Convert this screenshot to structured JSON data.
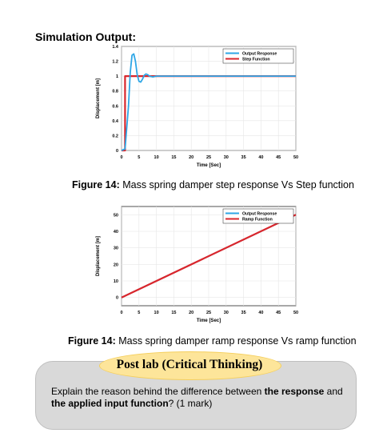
{
  "section_title": "Simulation Output:",
  "captions": [
    {
      "prefix": "Figure 14:",
      "text": " Mass spring damper step response Vs Step function"
    },
    {
      "prefix": "Figure 14:",
      "text": " Mass spring damper ramp response Vs ramp function"
    }
  ],
  "postlab": {
    "title": "Post lab (Critical Thinking)",
    "q_part1": "Explain the reason behind the difference between ",
    "q_bold1": "the response",
    "q_part2": " and ",
    "q_bold2": "the applied input function",
    "q_part3": "? (1 mark)"
  },
  "colors": {
    "output": "#2ea6e6",
    "input": "#d9262c",
    "pill": "#fde59a",
    "box": "#d9d9d9"
  },
  "chart_data": [
    {
      "type": "line",
      "xlabel": "Time [Sec]",
      "ylabel": "Displacement [m]",
      "xlim": [
        0,
        50
      ],
      "ylim": [
        0,
        1.4
      ],
      "xticks": [
        0,
        5,
        10,
        15,
        20,
        25,
        30,
        35,
        40,
        45,
        50
      ],
      "yticks": [
        0,
        0.2,
        0.4,
        0.6,
        0.8,
        1,
        1.2,
        1.4
      ],
      "ytick_labels": [
        "0",
        "0.2",
        "0.4",
        "0.6",
        "0.8",
        "1",
        "1.2",
        "1.4"
      ],
      "grid": true,
      "legend": "top-right",
      "series": [
        {
          "name": "Output Response",
          "color": "#2ea6e6",
          "x": [
            0,
            1,
            2,
            2.5,
            3,
            3.5,
            4,
            4.5,
            5,
            5.5,
            6,
            6.5,
            7,
            7.5,
            8,
            9,
            10,
            12,
            15,
            50
          ],
          "y": [
            0,
            0.02,
            0.6,
            1.05,
            1.28,
            1.3,
            1.2,
            1.02,
            0.93,
            0.92,
            0.96,
            1.01,
            1.03,
            1.02,
            1.0,
            0.99,
            1.0,
            1.0,
            1.0,
            1.0
          ]
        },
        {
          "name": "Step Function",
          "color": "#d9262c",
          "x": [
            0,
            1,
            1,
            50
          ],
          "y": [
            0,
            0,
            1,
            1
          ]
        }
      ]
    },
    {
      "type": "line",
      "xlabel": "Time [Sec]",
      "ylabel": "Displacement [m]",
      "xlim": [
        0,
        50
      ],
      "ylim": [
        -5,
        55
      ],
      "xticks": [
        0,
        5,
        10,
        15,
        20,
        25,
        30,
        35,
        40,
        45,
        50
      ],
      "yticks": [
        0,
        10,
        20,
        30,
        40,
        50
      ],
      "ytick_labels": [
        "0",
        "10",
        "20",
        "30",
        "40",
        "50"
      ],
      "grid": true,
      "legend": "top-right",
      "series": [
        {
          "name": "Output Response",
          "color": "#2ea6e6",
          "x": [
            0,
            50
          ],
          "y": [
            0,
            50
          ]
        },
        {
          "name": "Ramp Function",
          "color": "#d9262c",
          "x": [
            0,
            50
          ],
          "y": [
            0,
            50
          ]
        }
      ]
    }
  ]
}
